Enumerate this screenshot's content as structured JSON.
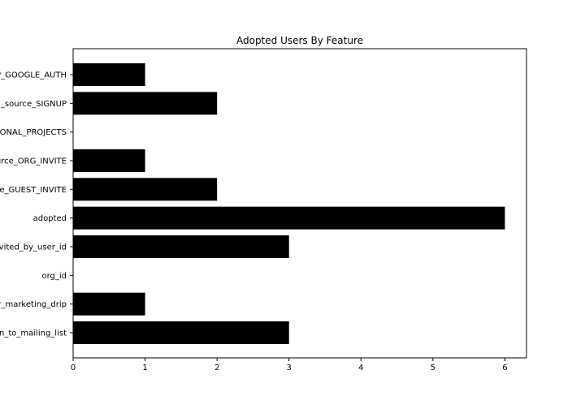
{
  "chart_data": {
    "type": "bar",
    "orientation": "horizontal",
    "title": "Adopted Users By Feature",
    "xlabel": "",
    "ylabel": "",
    "xlim": [
      0,
      6.3
    ],
    "x_ticks": [
      "0",
      "1",
      "2",
      "3",
      "4",
      "5",
      "6"
    ],
    "grid": false,
    "bar_color": "#000000",
    "categories": [
      "P_GOOGLE_AUTH",
      "_source_SIGNUP",
      "ONAL_PROJECTS",
      "urce_ORG_INVITE",
      "e_GUEST_INVITE",
      "adopted",
      "vited_by_user_id",
      "org_id",
      "r_marketing_drip",
      "n_to_mailing_list"
    ],
    "values": [
      1,
      2,
      0,
      1,
      2,
      6,
      3,
      0,
      1,
      3
    ]
  }
}
